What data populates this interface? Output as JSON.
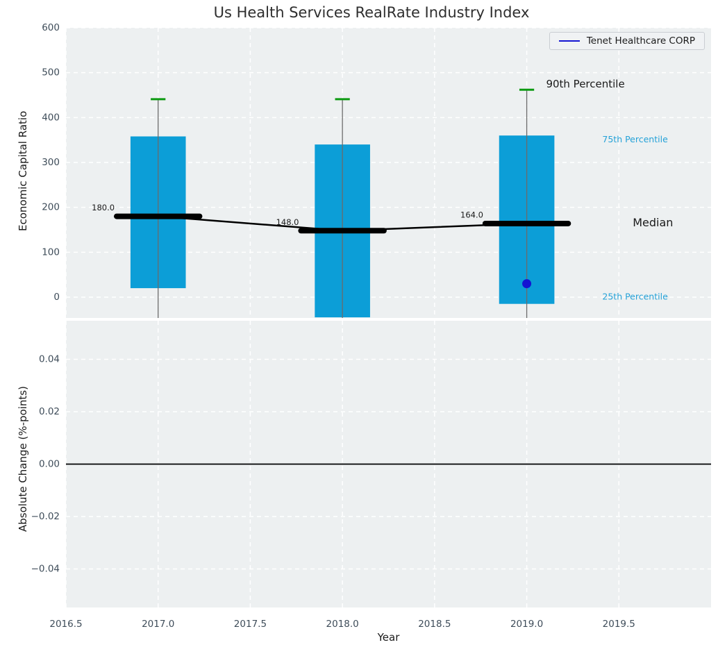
{
  "legend": {
    "label": "Tenet Healthcare CORP"
  },
  "colors": {
    "box_fill": "#0c9ed7",
    "median": "#000000",
    "whisker": "#6b6b6b",
    "percentile_cap": "#0d9a12",
    "company": "#1414d2",
    "axes_bg": "#edf0f1",
    "grid": "#ffffff",
    "tick_text": "#3e4c59",
    "percentile_label": "#25a2d8",
    "text": "#1a1a1a",
    "zero_line": "#000000"
  },
  "chart_data": [
    {
      "type": "boxplot",
      "title": "Us Health Services RealRate Industry Index",
      "ylabel": "Economic Capital Ratio",
      "xlim": [
        2016.5,
        2020.0
      ],
      "ylim": [
        -46.4,
        600
      ],
      "grid": true,
      "yticks": [
        {
          "v": 0,
          "label": "0"
        },
        {
          "v": 100,
          "label": "100"
        },
        {
          "v": 200,
          "label": "200"
        },
        {
          "v": 300,
          "label": "300"
        },
        {
          "v": 400,
          "label": "400"
        },
        {
          "v": 500,
          "label": "500"
        },
        {
          "v": 600,
          "label": "600"
        }
      ],
      "boxes": [
        {
          "year": 2017,
          "q1": 20,
          "median": 180,
          "q3": 358,
          "p90": 441,
          "median_label": "180.0"
        },
        {
          "year": 2018,
          "q1": -45,
          "median": 148,
          "q3": 340,
          "p90": 441,
          "median_label": "148.0"
        },
        {
          "year": 2019,
          "q1": -15,
          "median": 164,
          "q3": 360,
          "p90": 462,
          "median_label": "164.0"
        }
      ],
      "median_line": [
        {
          "x": 2017,
          "y": 180
        },
        {
          "x": 2018,
          "y": 148
        },
        {
          "x": 2019,
          "y": 164
        }
      ],
      "company_point": {
        "name": "Tenet Healthcare CORP",
        "x": 2019,
        "y": 30
      },
      "annotations": [
        {
          "text": "90th Percentile",
          "x": 2019.105,
          "y": 474,
          "color": "#1a1a1a",
          "size": 15
        },
        {
          "text": "75th Percentile",
          "x": 2019.41,
          "y": 350,
          "color": "#25a2d8",
          "size": 12.5
        },
        {
          "text": "Median",
          "x": 2019.575,
          "y": 165,
          "color": "#1a1a1a",
          "size": 16
        },
        {
          "text": "25th Percentile",
          "x": 2019.41,
          "y": 0,
          "color": "#25a2d8",
          "size": 12.5
        }
      ],
      "legend": [
        "Tenet Healthcare CORP"
      ],
      "legend_position": "upper right"
    },
    {
      "type": "line",
      "ylabel": "Absolute Change (%-points)",
      "xlabel": "Year",
      "xlim": [
        2016.5,
        2020.0
      ],
      "ylim": [
        -0.0547,
        0.0547
      ],
      "grid": true,
      "zero_line": 0.0,
      "series": [],
      "yticks": [
        {
          "v": 0.04,
          "label": "0.04"
        },
        {
          "v": 0.02,
          "label": "0.02"
        },
        {
          "v": 0.0,
          "label": "0.00"
        },
        {
          "v": -0.02,
          "label": "−0.02"
        },
        {
          "v": -0.04,
          "label": "−0.04"
        }
      ],
      "xticks": [
        {
          "v": 2016.5,
          "label": "2016.5"
        },
        {
          "v": 2017.0,
          "label": "2017.0"
        },
        {
          "v": 2017.5,
          "label": "2017.5"
        },
        {
          "v": 2018.0,
          "label": "2018.0"
        },
        {
          "v": 2018.5,
          "label": "2018.5"
        },
        {
          "v": 2019.0,
          "label": "2019.0"
        },
        {
          "v": 2019.5,
          "label": "2019.5"
        }
      ]
    }
  ]
}
